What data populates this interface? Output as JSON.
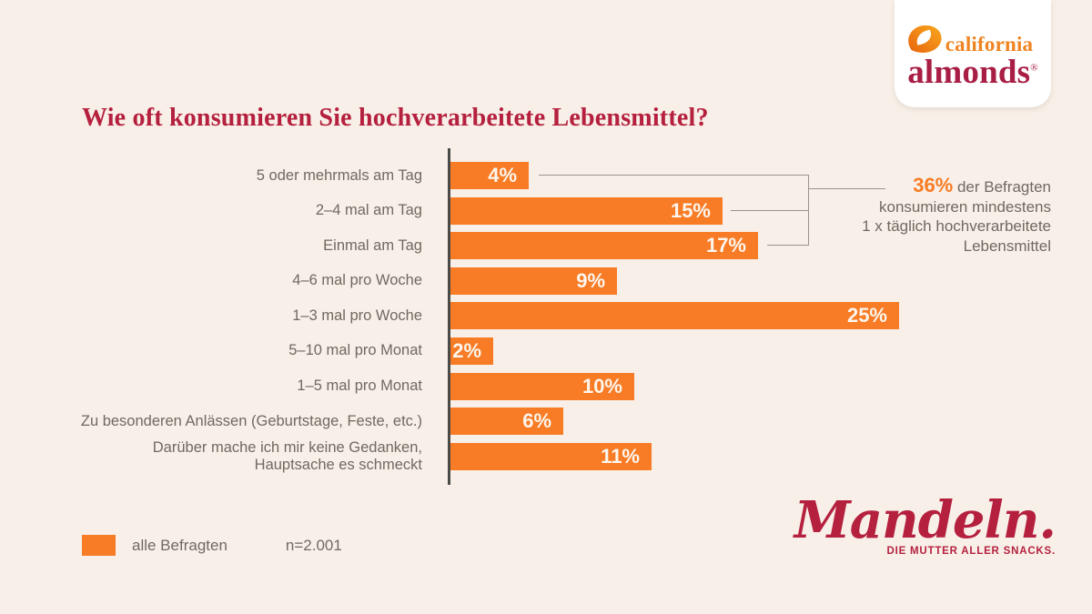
{
  "page": {
    "background": "#F8F0E8"
  },
  "logo": {
    "line1": "california",
    "line2": "almonds",
    "registered": "®"
  },
  "title": {
    "text": "Wie oft konsumieren Sie hochverarbeitete Lebensmittel?"
  },
  "chart_data": {
    "type": "bar",
    "orientation": "horizontal",
    "categories": [
      "5 oder mehrmals am Tag",
      "2–4 mal am Tag",
      "Einmal am Tag",
      "4–6 mal pro Woche",
      "1–3 mal pro Woche",
      "5–10 mal pro Monat",
      "1–5 mal pro Monat",
      "Zu besonderen Anlässen (Geburtstage, Feste, etc.)",
      "Darüber mache ich mir keine Gedanken,\nHauptsache es schmeckt"
    ],
    "values": [
      4,
      15,
      17,
      9,
      25,
      2,
      10,
      6,
      11
    ],
    "value_labels": [
      "4%",
      "15%",
      "17%",
      "9%",
      "25%",
      "2%",
      "10%",
      "6%",
      "11%"
    ],
    "series_name": "alle Befragten",
    "bar_color": "#F87B25",
    "xlim": [
      0,
      25
    ],
    "grid": false,
    "legend_position": "bottom-left"
  },
  "annotation": {
    "highlight": "36%",
    "line1_rest": " der Befragten",
    "line2": "konsumieren mindestens",
    "line3": "1 x täglich hochverarbeitete",
    "line4": "Lebensmittel",
    "highlight_color": "#F87B25"
  },
  "legend": {
    "label": "alle Befragten",
    "sample": "n=2.001",
    "swatch_color": "#F87B25"
  },
  "footer_logo": {
    "script": "Mandeln.",
    "tagline": "DIE MUTTER ALLER SNACKS."
  }
}
